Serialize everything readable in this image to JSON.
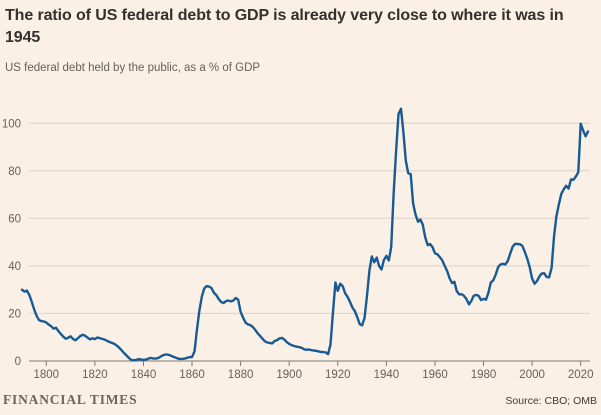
{
  "header": {
    "title": "The ratio of US federal debt to GDP is already very close to where it was in 1945",
    "subtitle": "US federal debt held by the public, as a % of GDP"
  },
  "footer": {
    "brand": "FINANCIAL TIMES",
    "source": "Source: CBO; OMB"
  },
  "colors": {
    "background": "#FBF0E5",
    "title_text": "#33302E",
    "subtitle_text": "#66605C",
    "gridline": "#DCD2C6",
    "axis": "#807970",
    "line": "#175A94"
  },
  "chart_data": {
    "type": "line",
    "title": "The ratio of US federal debt to GDP is already very close to where it was in 1945",
    "subtitle": "US federal debt held by the public, as a % of GDP",
    "xlabel": "",
    "ylabel": "% of GDP",
    "xlim": [
      1790,
      2023
    ],
    "ylim": [
      0,
      110
    ],
    "grid": "horizontal",
    "legend": "none",
    "x_ticks": [
      1800,
      1820,
      1840,
      1860,
      1880,
      1900,
      1920,
      1940,
      1960,
      1980,
      2000,
      2020
    ],
    "y_ticks": [
      0,
      20,
      40,
      60,
      80,
      100
    ],
    "line_color": "#175A94",
    "x_start": 1790,
    "x_step": 1,
    "series": [
      {
        "name": "US federal debt held by the public, % of GDP",
        "values": [
          30.0,
          29.2,
          29.6,
          27.8,
          25.0,
          21.8,
          19.0,
          17.2,
          16.8,
          16.6,
          16.2,
          15.3,
          14.6,
          13.6,
          14.0,
          12.6,
          11.3,
          10.2,
          9.4,
          9.8,
          10.4,
          9.3,
          8.7,
          9.6,
          10.5,
          11.0,
          10.6,
          9.8,
          9.1,
          9.6,
          9.2,
          9.9,
          9.6,
          9.3,
          9.0,
          8.5,
          8.0,
          7.6,
          7.2,
          6.5,
          5.6,
          4.5,
          3.4,
          2.3,
          1.3,
          0.4,
          0.3,
          0.4,
          0.8,
          0.6,
          0.5,
          0.6,
          1.0,
          1.3,
          1.1,
          1.0,
          1.2,
          1.8,
          2.4,
          2.7,
          2.7,
          2.4,
          1.9,
          1.5,
          1.1,
          0.9,
          0.9,
          1.0,
          1.4,
          1.6,
          1.7,
          4.0,
          13.0,
          21.0,
          27.0,
          30.5,
          31.5,
          31.3,
          30.7,
          28.7,
          27.7,
          26.0,
          24.8,
          24.4,
          25.2,
          25.4,
          25.1,
          25.4,
          26.5,
          25.8,
          20.7,
          18.2,
          16.2,
          15.4,
          15.1,
          14.3,
          13.1,
          11.7,
          10.5,
          9.4,
          8.3,
          7.8,
          7.6,
          7.4,
          8.4,
          8.8,
          9.5,
          9.7,
          9.0,
          7.9,
          7.2,
          6.7,
          6.3,
          6.0,
          5.9,
          5.6,
          5.0,
          4.7,
          4.9,
          4.6,
          4.4,
          4.3,
          4.1,
          3.8,
          3.8,
          3.6,
          2.9,
          7.0,
          20.0,
          33.0,
          29.5,
          32.5,
          31.5,
          28.5,
          27.0,
          25.0,
          22.5,
          21.0,
          18.5,
          15.5,
          15.0,
          18.0,
          27.0,
          38.0,
          44.0,
          41.5,
          43.5,
          40.0,
          38.5,
          42.5,
          44.2,
          42.3,
          47.9,
          70.9,
          88.3,
          103.9,
          106.1,
          96.2,
          84.3,
          79.0,
          78.6,
          66.3,
          61.6,
          58.6,
          59.5,
          57.3,
          52.1,
          48.7,
          49.2,
          47.9,
          45.3,
          44.9,
          43.7,
          42.4,
          40.0,
          37.9,
          34.9,
          32.8,
          33.3,
          29.3,
          28.0,
          28.1,
          27.4,
          26.0,
          23.8,
          25.3,
          27.5,
          27.8,
          27.4,
          25.6,
          26.1,
          25.8,
          28.7,
          33.0,
          34.0,
          36.3,
          39.5,
          40.6,
          40.9,
          40.6,
          42.1,
          45.3,
          48.1,
          49.3,
          49.2,
          49.1,
          48.4,
          45.9,
          43.0,
          39.4,
          34.7,
          32.5,
          33.6,
          35.6,
          36.8,
          36.9,
          35.3,
          35.2,
          39.2,
          52.3,
          60.8,
          65.8,
          70.3,
          72.2,
          73.7,
          72.5,
          76.4,
          76.2,
          77.6,
          79.4,
          99.8,
          97.0,
          94.5,
          96.5
        ]
      }
    ]
  }
}
